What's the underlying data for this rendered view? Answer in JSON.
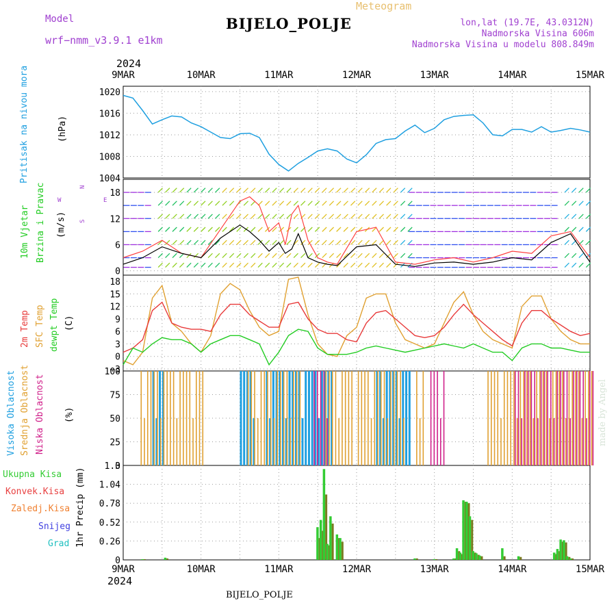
{
  "header": {
    "title": "BIJELO_POLJE",
    "subtitle": "Meteogram",
    "model_label": "Model",
    "model_value": "wrf−nmm_v3.9.1  e1km",
    "lonlat": "lon,lat (19.7E, 43.0312N)",
    "altitude": "Nadmorska Visina 606m",
    "altitude_model": "Nadmorska Visina u modelu 808.849m"
  },
  "footer": {
    "year_top": "2024",
    "year_bottom": "2024",
    "station": "BIJELO_POLJE",
    "credit": "made by Angel"
  },
  "colors": {
    "pressure": "#1e9fe0",
    "temp2m": "#e83a3a",
    "sfc_temp": "#e0a030",
    "dewpoint": "#22cc22",
    "high_cloud": "#1e9fe0",
    "mid_cloud": "#e0a030",
    "low_cloud": "#d0208a",
    "rain_total": "#33cc33",
    "rain_conv": "#e84040",
    "rain_frz": "#f08030",
    "snow": "#4040e0",
    "hail": "#20c0c0",
    "wind_speed": "#000000",
    "wind_gust": "#ff4040"
  },
  "panel_labels": {
    "pressure": [
      "Pritisak na nivou mora",
      "(hPa)"
    ],
    "wind": [
      "10m Vjetar",
      "Brzina i Pravac",
      "(m/s)"
    ],
    "compass": [
      "W",
      "E",
      "N",
      "S"
    ],
    "temp": [
      "2m Temp",
      "SFC Temp",
      "dewpt Temp",
      "(C)"
    ],
    "cloud": [
      "Visoka Oblacnost",
      "Srednja Oblacnost",
      "Niska Oblacnost",
      "(%)"
    ],
    "precip_legend": [
      "Ukupna Kisa",
      "Konvek.Kisa",
      "Zaledj.Kisa",
      "Snijeg",
      "Grad"
    ],
    "precip_axis": "1hr Precip (mm)"
  },
  "chart_data": [
    {
      "type": "line",
      "name": "pressure",
      "x_range_hours": [
        0,
        144
      ],
      "x_ticks": [
        "9MAR",
        "10MAR",
        "11MAR",
        "12MAR",
        "13MAR",
        "14MAR",
        "15MAR"
      ],
      "ylim": [
        1004,
        1021
      ],
      "y_ticks": [
        "1004",
        "1008",
        "1012",
        "1016",
        "1020"
      ],
      "grid": true,
      "series": [
        {
          "x": [
            0,
            3,
            6,
            9,
            12,
            15,
            18,
            21,
            24,
            27,
            30,
            33,
            36,
            39,
            42,
            45,
            48,
            51,
            54,
            57,
            60,
            63,
            66,
            69,
            72,
            75,
            78,
            81,
            84,
            87,
            90,
            93,
            96,
            99,
            102,
            105,
            108,
            111,
            114,
            117,
            120,
            123,
            126,
            129,
            132,
            135,
            138,
            141,
            144
          ],
          "values": [
            1019.3,
            1018.8,
            1016.5,
            1014,
            1014.8,
            1015.5,
            1015.3,
            1014.2,
            1013.5,
            1012.5,
            1011.5,
            1011.3,
            1012.2,
            1012.3,
            1011.5,
            1008.4,
            1006.5,
            1005.3,
            1006.7,
            1007.8,
            1009,
            1009.4,
            1009,
            1007.5,
            1006.8,
            1008.3,
            1010.4,
            1011.1,
            1011.3,
            1012.7,
            1013.8,
            1012.4,
            1013.2,
            1014.8,
            1015.4,
            1015.6,
            1015.7,
            1014.2,
            1012,
            1011.8,
            1013,
            1013,
            1012.5,
            1013.5,
            1012.5,
            1012.8,
            1013.2,
            1012.9,
            1012.5
          ]
        }
      ]
    },
    {
      "type": "line",
      "name": "wind",
      "ylim": [
        -1,
        21
      ],
      "y_ticks": [
        "0",
        "6",
        "12",
        "18"
      ],
      "grid": true,
      "series": [
        {
          "name": "speed",
          "x": [
            0,
            6,
            12,
            18,
            24,
            30,
            36,
            39,
            42,
            45,
            48,
            50,
            52,
            54,
            57,
            60,
            63,
            66,
            72,
            78,
            84,
            90,
            96,
            102,
            108,
            114,
            120,
            126,
            132,
            138,
            144
          ],
          "values": [
            1.5,
            3,
            5.5,
            4,
            3,
            7.5,
            10.5,
            9,
            7,
            4.5,
            6.5,
            4,
            5,
            8.5,
            3,
            2,
            1.5,
            1.2,
            5.5,
            6,
            1.5,
            1,
            1.8,
            2,
            1.5,
            2,
            3,
            2.5,
            6.5,
            8.5,
            2
          ]
        },
        {
          "name": "gust",
          "x": [
            0,
            6,
            12,
            18,
            24,
            30,
            36,
            39,
            42,
            45,
            48,
            50,
            52,
            54,
            57,
            60,
            63,
            66,
            72,
            78,
            84,
            90,
            96,
            102,
            108,
            114,
            120,
            126,
            132,
            138,
            144
          ],
          "values": [
            3,
            4.5,
            7,
            4,
            3,
            9.5,
            16,
            17,
            15,
            9,
            11,
            6,
            13,
            15,
            7,
            3,
            2,
            1.5,
            9,
            10,
            2,
            1.5,
            2.5,
            3,
            2,
            3,
            4.5,
            4,
            8,
            9,
            3
          ]
        }
      ]
    },
    {
      "type": "line",
      "name": "temperature",
      "ylim": [
        -3.5,
        19.5
      ],
      "y_ticks": [
        "−3",
        "0",
        "3",
        "6",
        "9",
        "12",
        "15",
        "18"
      ],
      "grid": true,
      "series": [
        {
          "name": "2m",
          "x": [
            0,
            3,
            6,
            9,
            12,
            15,
            18,
            21,
            24,
            27,
            30,
            33,
            36,
            39,
            42,
            45,
            48,
            51,
            54,
            57,
            60,
            63,
            66,
            69,
            72,
            75,
            78,
            81,
            84,
            87,
            90,
            93,
            96,
            99,
            102,
            105,
            108,
            111,
            114,
            117,
            120,
            123,
            126,
            129,
            132,
            135,
            138,
            141,
            144
          ],
          "values": [
            1,
            2,
            4,
            11,
            13,
            8,
            7,
            6.5,
            6.5,
            6,
            10,
            12.5,
            12.5,
            10,
            8.5,
            7,
            7,
            12.5,
            13,
            9,
            6.5,
            5.5,
            5.5,
            4,
            3.5,
            8,
            10.5,
            11,
            9,
            7,
            5,
            4.5,
            5,
            7,
            10,
            12.5,
            10,
            8,
            6,
            4,
            2.5,
            8,
            11,
            11,
            9,
            7.5,
            6,
            5,
            5.5
          ]
        },
        {
          "name": "SFC",
          "x": [
            0,
            3,
            6,
            9,
            12,
            15,
            18,
            21,
            24,
            27,
            30,
            33,
            36,
            39,
            42,
            45,
            48,
            51,
            54,
            57,
            60,
            63,
            66,
            69,
            72,
            75,
            78,
            81,
            84,
            87,
            90,
            93,
            96,
            99,
            102,
            105,
            108,
            111,
            114,
            117,
            120,
            123,
            126,
            129,
            132,
            135,
            138,
            141,
            144
          ],
          "values": [
            -1,
            -2,
            1,
            14,
            17,
            8,
            6,
            3,
            1,
            5,
            15,
            17.5,
            16,
            11,
            7,
            5,
            6,
            18.5,
            19,
            10,
            3,
            0.5,
            0,
            5,
            7,
            14,
            15,
            15,
            8,
            4,
            3,
            2,
            3,
            8,
            13,
            15.5,
            10,
            6,
            4,
            3,
            2,
            12,
            14.5,
            14.5,
            9,
            6,
            4,
            3,
            3
          ]
        },
        {
          "name": "dewpoint",
          "x": [
            0,
            3,
            6,
            9,
            12,
            15,
            18,
            21,
            24,
            27,
            30,
            33,
            36,
            39,
            42,
            45,
            48,
            51,
            54,
            57,
            60,
            63,
            66,
            69,
            72,
            75,
            78,
            81,
            84,
            87,
            90,
            93,
            96,
            99,
            102,
            105,
            108,
            111,
            114,
            117,
            120,
            123,
            126,
            129,
            132,
            135,
            138,
            141,
            144
          ],
          "values": [
            -2,
            2,
            1,
            3,
            4.5,
            4,
            4,
            3,
            1,
            3,
            4,
            5,
            5,
            4,
            3,
            -2,
            1,
            5,
            6.5,
            6,
            2,
            0.5,
            0.5,
            0.5,
            1,
            2,
            2.5,
            2,
            1.5,
            1,
            1.5,
            2,
            2.5,
            3,
            2.5,
            2,
            3,
            2,
            1,
            1,
            -1,
            2,
            3,
            3,
            2,
            2,
            1.5,
            1,
            1
          ]
        }
      ]
    },
    {
      "type": "bar",
      "name": "cloud",
      "ylim": [
        0,
        100
      ],
      "y_ticks": [
        "0",
        "25",
        "50",
        "75",
        "100"
      ],
      "grid": true,
      "series": [
        {
          "name": "high",
          "ranges": [
            [
              9,
              12
            ],
            [
              36,
              40
            ],
            [
              44,
              55
            ],
            [
              48,
              64
            ],
            [
              78,
              84
            ],
            [
              84,
              88
            ]
          ],
          "value": 100
        },
        {
          "name": "mid",
          "ranges": [
            [
              5,
              24
            ],
            [
              38,
              54
            ],
            [
              62,
              70
            ],
            [
              72,
              86
            ],
            [
              90,
              92
            ],
            [
              112,
              144
            ]
          ],
          "value": 100
        },
        {
          "name": "low",
          "ranges": [
            [
              58,
              62
            ],
            [
              94,
              98
            ],
            [
              120,
              144
            ]
          ],
          "value": 100
        }
      ]
    },
    {
      "type": "bar",
      "name": "precip",
      "ylim": [
        0,
        1.3
      ],
      "y_ticks": [
        "0",
        "0.26",
        "0.52",
        "0.78",
        "1.04",
        "1.3"
      ],
      "grid": true,
      "series": [
        {
          "name": "total",
          "x": [
            6,
            13,
            60,
            61,
            62,
            63,
            64,
            66,
            67,
            90,
            96,
            102,
            103,
            104,
            105,
            106,
            107,
            108,
            109,
            110,
            117,
            122,
            133,
            134,
            135,
            136,
            137,
            138
          ],
          "values": [
            0.01,
            0.03,
            0.45,
            0.55,
            1.25,
            0.22,
            0.6,
            0.35,
            0.3,
            0.02,
            0.01,
            0.02,
            0.16,
            0.1,
            0.82,
            0.8,
            0.6,
            0.12,
            0.09,
            0.06,
            0.16,
            0.05,
            0.1,
            0.15,
            0.28,
            0.27,
            0.05,
            0.02
          ]
        },
        {
          "name": "conv",
          "x": [
            6,
            13,
            60,
            61,
            62,
            63,
            64,
            66,
            67,
            90,
            96,
            102,
            103,
            104,
            105,
            106,
            107,
            108,
            109,
            110,
            117,
            122,
            133,
            134,
            135,
            136,
            137,
            138
          ],
          "values": [
            0.01,
            0.02,
            0.3,
            0.4,
            0.9,
            0.2,
            0.5,
            0.3,
            0.25,
            0.02,
            0.01,
            0.02,
            0.12,
            0.08,
            0.8,
            0.78,
            0.55,
            0.1,
            0.07,
            0.05,
            0.05,
            0.04,
            0.08,
            0.12,
            0.25,
            0.24,
            0.04,
            0.02
          ]
        }
      ]
    }
  ]
}
